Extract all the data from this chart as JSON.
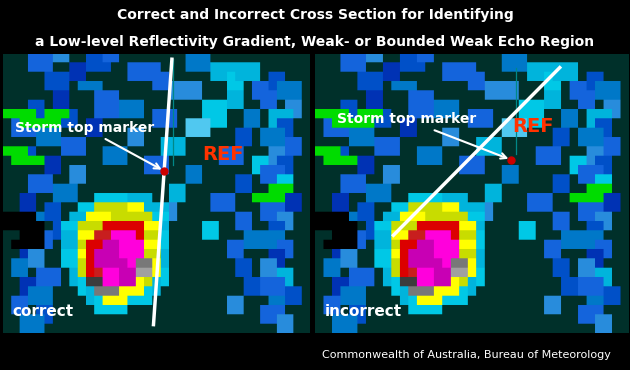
{
  "title_line1": "Correct and Incorrect Cross Section for Identifying",
  "title_line2": "a Low-level Reflectivity Gradient, Weak- or Bounded Weak Echo Region",
  "title_fontsize": 10,
  "title_color": "white",
  "background_color": "black",
  "label_correct": "correct",
  "label_incorrect": "incorrect",
  "label_fontsize": 11,
  "label_color": "white",
  "storm_marker_text": "Storm top marker",
  "storm_marker_fontsize": 10,
  "ref_text": "REF",
  "ref_color": "#ff3300",
  "ref_fontsize": 14,
  "footer_text": "Commonwealth of Australia, Bureau of Meteorology",
  "footer_fontsize": 8,
  "footer_color": "white",
  "panel_bg": "#003030"
}
